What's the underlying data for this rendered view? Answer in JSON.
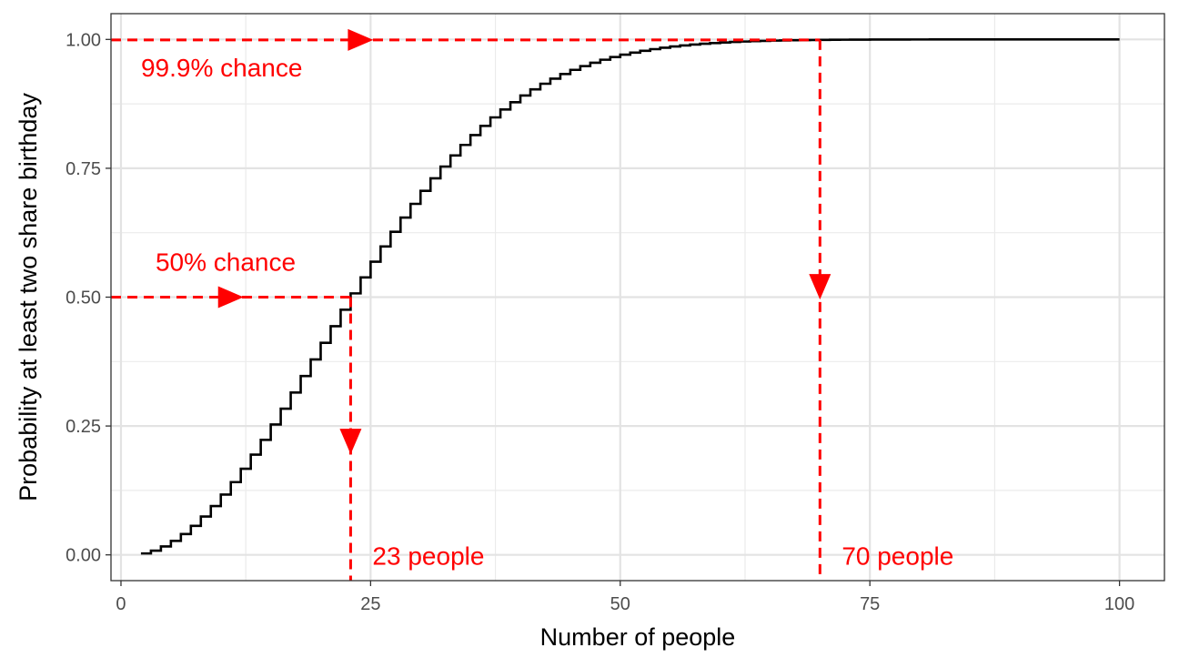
{
  "chart_data": {
    "type": "line",
    "step": true,
    "xlabel": "Number of people",
    "ylabel": "Probability at least two share birthday",
    "xlim": [
      -1,
      104.5
    ],
    "ylim": [
      -0.05,
      1.05
    ],
    "x_ticks": [
      "0",
      "25",
      "50",
      "75",
      "100"
    ],
    "x_tick_values": [
      0,
      25,
      50,
      75,
      100
    ],
    "y_ticks": [
      "0.00",
      "0.25",
      "0.50",
      "0.75",
      "1.00"
    ],
    "y_tick_values": [
      0,
      0.25,
      0.5,
      0.75,
      1
    ],
    "grid": true,
    "series": [
      {
        "x_start": 2,
        "x_end": 100,
        "formula": "1 - prod_{k=0}^{n-1}(365-k)/365",
        "color": "#000000"
      }
    ],
    "annotations": [
      {
        "text": "99.9% chance",
        "x": 0,
        "y": 0.999
      },
      {
        "text": "50% chance",
        "x": 0,
        "y": 0.5
      },
      {
        "text": "23 people",
        "x": 23,
        "y": 0
      },
      {
        "text": "70 people",
        "x": 70,
        "y": 0
      }
    ],
    "reference_lines": [
      {
        "type": "horizontal",
        "y": 0.999,
        "x_from": -1,
        "x_to": 70
      },
      {
        "type": "horizontal",
        "y": 0.5,
        "x_from": -1,
        "x_to": 23
      },
      {
        "type": "vertical",
        "x": 23,
        "y_from": 0.5,
        "y_to": -0.05
      },
      {
        "type": "vertical",
        "x": 70,
        "y_from": 0.999,
        "y_to": -0.05
      }
    ],
    "arrows": [
      {
        "direction": "right",
        "x": 24,
        "y": 0.999
      },
      {
        "direction": "right",
        "x": 11,
        "y": 0.5
      },
      {
        "direction": "down",
        "x": 23,
        "y": 0.22
      },
      {
        "direction": "down",
        "x": 70,
        "y": 0.52
      }
    ],
    "annotation_color": "#ff0000"
  }
}
